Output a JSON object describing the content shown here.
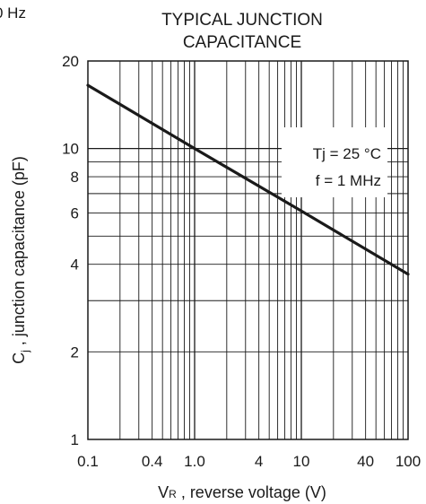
{
  "header_fragment": "0 Hz",
  "chart_data": {
    "type": "line",
    "title": [
      "TYPICAL JUNCTION",
      "CAPACITANCE"
    ],
    "xlabel": "VR , reverse voltage (V)",
    "xlabel_main": "V",
    "xlabel_sub": "R",
    "xlabel_rest": " , reverse voltage (V)",
    "ylabel": "Cj , junction capacitance (pF)",
    "ylabel_main": "C",
    "ylabel_sub": "j",
    "ylabel_rest": " , junction capacitance (pF)",
    "x_scale": "log",
    "y_scale": "log",
    "xlim": [
      0.1,
      100
    ],
    "ylim": [
      1,
      20
    ],
    "x_ticks": [
      {
        "value": 0.1,
        "label": "0.1"
      },
      {
        "value": 0.4,
        "label": "0.4"
      },
      {
        "value": 1.0,
        "label": "1.0"
      },
      {
        "value": 4,
        "label": "4"
      },
      {
        "value": 10,
        "label": "10"
      },
      {
        "value": 40,
        "label": "40"
      },
      {
        "value": 100,
        "label": "100"
      }
    ],
    "y_ticks": [
      {
        "value": 1,
        "label": "1"
      },
      {
        "value": 2,
        "label": "2"
      },
      {
        "value": 4,
        "label": "4"
      },
      {
        "value": 6,
        "label": "6"
      },
      {
        "value": 8,
        "label": "8"
      },
      {
        "value": 10,
        "label": "10"
      },
      {
        "value": 20,
        "label": "20"
      }
    ],
    "grid": true,
    "series": [
      {
        "x": [
          0.1,
          1,
          10,
          100
        ],
        "y": [
          16.5,
          10.0,
          6.1,
          3.7
        ]
      }
    ],
    "annotations": [
      "Tj = 25 °C",
      "f = 1 MHz"
    ],
    "colors": {
      "line": "#1a1a1a",
      "grid": "#1a1a1a",
      "text": "#1a1a1a",
      "background": "#ffffff"
    }
  }
}
